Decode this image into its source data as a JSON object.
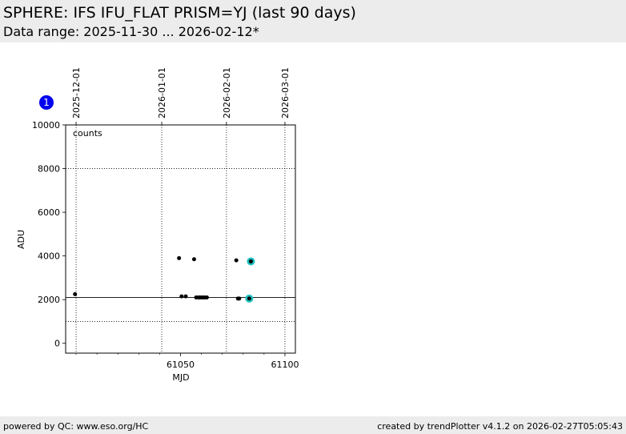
{
  "header": {
    "title": "SPHERE: IFS IFU_FLAT PRISM=YJ (last 90 days)",
    "subtitle": "Data range: 2025-11-30 ... 2026-02-12*"
  },
  "footer": {
    "left": "powered by QC: www.eso.org/HC",
    "right": "created by trendPlotter v4.1.2 on 2026-02-27T05:05:43"
  },
  "badge": {
    "label": "1",
    "color": "#0000ee"
  },
  "chart_data": {
    "type": "scatter",
    "xlabel": "MJD",
    "ylabel": "ADU",
    "annotation": "counts",
    "xlim": [
      60995,
      61105
    ],
    "ylim": [
      -450,
      10000
    ],
    "x_ticks": [
      61050,
      61100
    ],
    "x_tick_labels": [
      "61050",
      "61100"
    ],
    "y_ticks": [
      0,
      2000,
      4000,
      6000,
      8000,
      10000
    ],
    "y_tick_labels": [
      "0",
      "2000",
      "4000",
      "6000",
      "8000",
      "10000"
    ],
    "date_axis": {
      "position": "top",
      "ticks": [
        {
          "mjd": 61000,
          "label": "2025-12-01"
        },
        {
          "mjd": 61041,
          "label": "2026-01-01"
        },
        {
          "mjd": 61072,
          "label": "2026-02-01"
        },
        {
          "mjd": 61100,
          "label": "2026-03-01"
        }
      ]
    },
    "reference_lines": [
      {
        "y": 2100,
        "style": "solid",
        "color": "#000000"
      },
      {
        "y": 1000,
        "style": "dotted",
        "color": "#000000"
      },
      {
        "y": 8000,
        "style": "dotted",
        "color": "#000000"
      }
    ],
    "series": [
      {
        "points": [
          [
            60999.5,
            2250
          ],
          [
            61049.3,
            3900
          ],
          [
            61050.5,
            2150
          ],
          [
            61052.5,
            2150
          ],
          [
            61056.5,
            3850
          ],
          [
            61057.5,
            2100
          ],
          [
            61058.5,
            2100
          ],
          [
            61059.3,
            2100
          ],
          [
            61060.1,
            2100
          ],
          [
            61060.9,
            2100
          ],
          [
            61061.7,
            2100
          ],
          [
            61062.6,
            2100
          ],
          [
            61076.7,
            3800
          ],
          [
            61077.5,
            2050
          ],
          [
            61078.1,
            2050
          ],
          [
            61082.9,
            2050
          ],
          [
            61083.7,
            3750
          ]
        ],
        "color": "#000000"
      }
    ],
    "highlighted_points": [
      [
        61082.9,
        2050
      ],
      [
        61083.7,
        3750
      ]
    ],
    "highlight_color": "#20c0c0",
    "grid": "dotted"
  }
}
